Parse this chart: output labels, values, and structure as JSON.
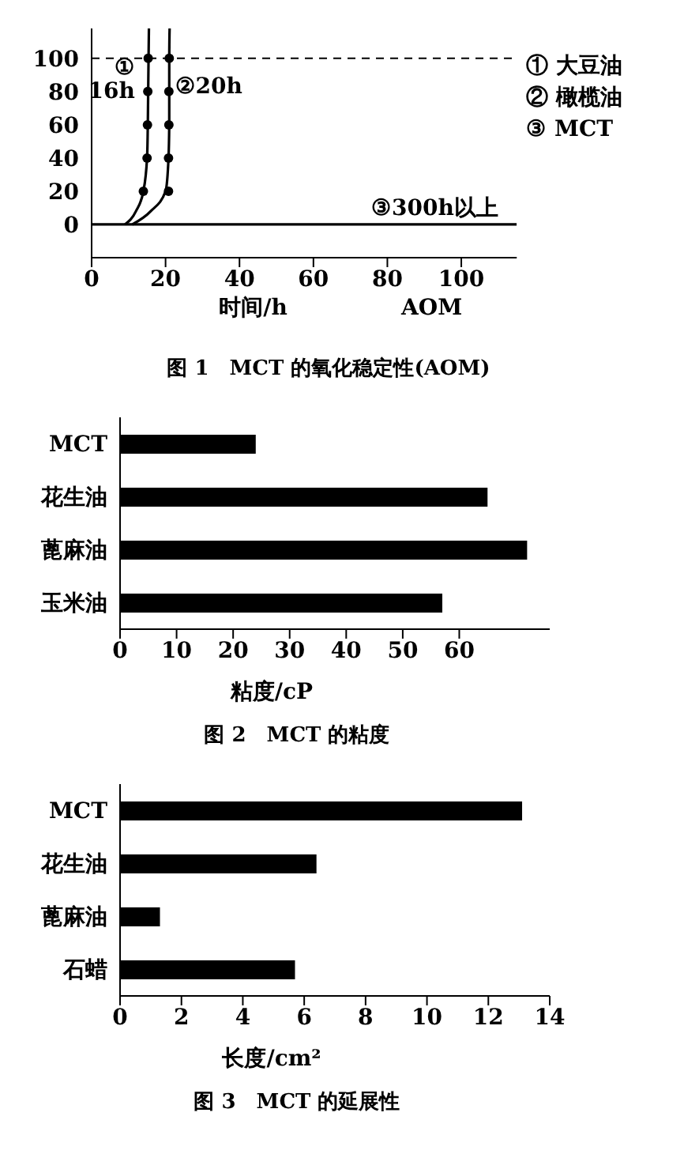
{
  "chart_data": [
    {
      "type": "line",
      "title": "图 1　MCT 的氧化稳定性(AOM)",
      "xlabel": "时间/h",
      "xlim": [
        0,
        115
      ],
      "xticks": [
        0,
        20,
        40,
        60,
        80,
        100
      ],
      "ylim": [
        -20,
        118
      ],
      "yticks": [
        0,
        20,
        40,
        60,
        80,
        100
      ],
      "series": [
        {
          "name": "① 大豆油",
          "type": "line",
          "color": "#000000",
          "x": [
            9,
            12,
            14,
            15,
            15.2,
            15.3,
            15.4,
            15.5
          ],
          "values": [
            0,
            8,
            20,
            40,
            60,
            80,
            100,
            118
          ]
        },
        {
          "name": "② 橄榄油",
          "type": "line",
          "color": "#000000",
          "x": [
            11,
            16,
            20,
            20.8,
            21,
            21,
            21,
            21.1
          ],
          "values": [
            0,
            8,
            20,
            40,
            60,
            80,
            100,
            118
          ]
        },
        {
          "name": "③ MCT",
          "type": "line",
          "color": "#000000",
          "x": [
            0,
            115
          ],
          "values": [
            0,
            0
          ]
        },
        {
          "type": "scatter",
          "marker": "circle",
          "color": "#000000",
          "x": [
            14,
            15,
            15.1,
            15.2,
            15.3
          ],
          "values": [
            20,
            40,
            60,
            80,
            100
          ]
        },
        {
          "type": "scatter",
          "marker": "circle",
          "color": "#000000",
          "x": [
            20.8,
            20.8,
            20.9,
            20.9,
            21
          ],
          "values": [
            20,
            40,
            60,
            80,
            100
          ]
        }
      ],
      "ref_lines": [
        {
          "axis": "y",
          "value": 100,
          "color": "#000000",
          "line_style": "dashed"
        }
      ],
      "annotations": [
        {
          "text": "① 16h",
          "x": 16,
          "y": 100
        },
        {
          "text": "②20h",
          "x": 20,
          "y": 100
        },
        {
          "text": "③300h以上",
          "x": 110,
          "y": 0
        },
        "AOM"
      ],
      "legend": "top right",
      "grid": false
    },
    {
      "type": "bar",
      "orientation": "horizontal",
      "title": "图 2　MCT 的粘度",
      "xlabel": "粘度/cP",
      "categories": [
        "MCT",
        "花生油",
        "蓖麻油",
        "玉米油"
      ],
      "values": [
        24,
        65,
        72,
        57
      ],
      "color": "#000000",
      "xlim": [
        0,
        76
      ],
      "xticks": [
        0,
        10,
        20,
        30,
        40,
        50,
        60
      ],
      "grid": false
    },
    {
      "type": "bar",
      "orientation": "horizontal",
      "title": "图 3　MCT 的延展性",
      "xlabel": "长度/cm²",
      "categories": [
        "MCT",
        "花生油",
        "蓖麻油",
        "石蜡"
      ],
      "values": [
        13.1,
        6.4,
        1.3,
        5.7
      ],
      "color": "#000000",
      "xlim": [
        0,
        14
      ],
      "xticks": [
        0,
        2,
        4,
        6,
        8,
        10,
        12,
        14
      ],
      "grid": false
    }
  ]
}
